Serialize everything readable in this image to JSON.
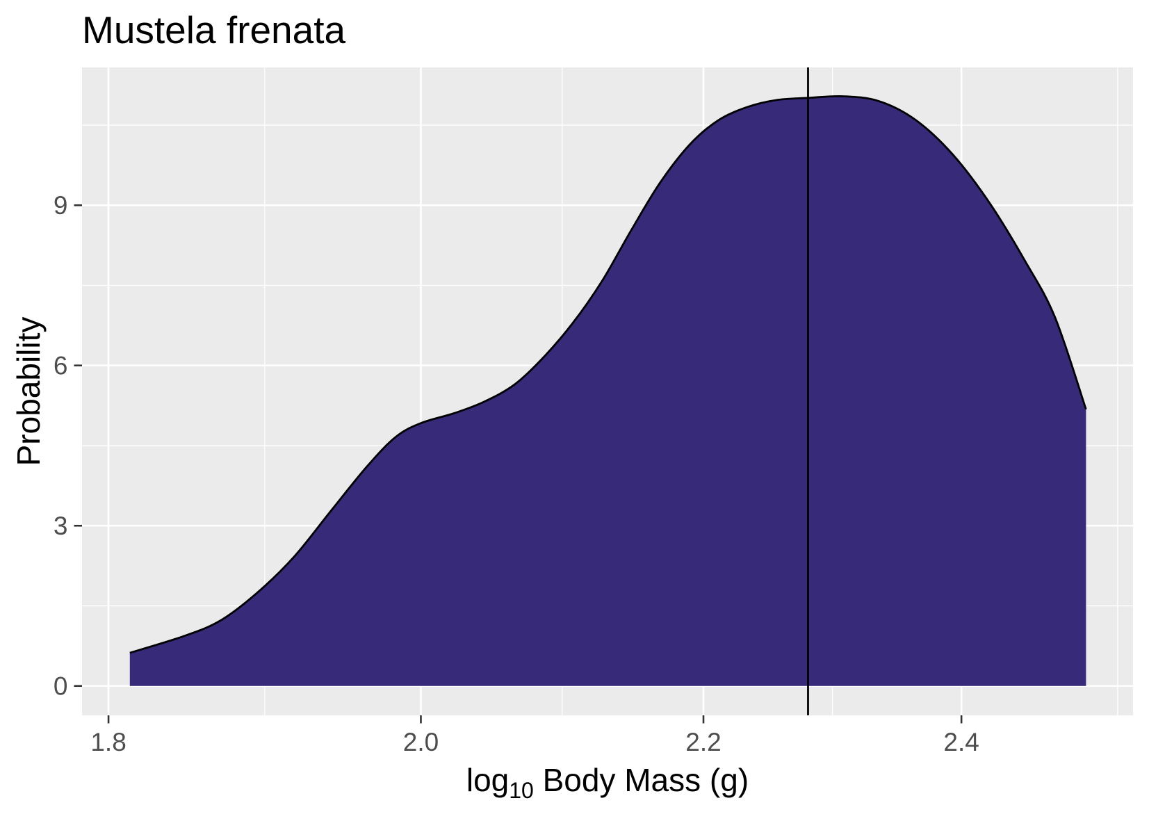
{
  "chart_data": {
    "type": "area",
    "title": "Mustela frenata",
    "xlabel": {
      "text": "log",
      "subscript": "10",
      "suffix": " Body Mass (g)"
    },
    "ylabel": "Probability",
    "x_scale": "log",
    "xlim": [
      1.784,
      2.543
    ],
    "ylim": [
      -0.55,
      11.58
    ],
    "x_ticks": [
      "1.8",
      "2.0",
      "2.2",
      "2.4"
    ],
    "y_ticks": [
      "0",
      "3",
      "6",
      "9"
    ],
    "grid": true,
    "x": [
      1.813,
      1.846,
      1.869,
      1.892,
      1.916,
      1.94,
      1.964,
      1.983,
      2.0,
      2.023,
      2.043,
      2.064,
      2.084,
      2.105,
      2.126,
      2.147,
      2.168,
      2.19,
      2.211,
      2.233,
      2.255,
      2.279,
      2.306,
      2.334,
      2.363,
      2.393,
      2.423,
      2.452,
      2.477,
      2.503
    ],
    "y": [
      0.62,
      0.93,
      1.22,
      1.73,
      2.41,
      3.27,
      4.11,
      4.66,
      4.92,
      5.11,
      5.32,
      5.64,
      6.14,
      6.79,
      7.58,
      8.53,
      9.42,
      10.14,
      10.59,
      10.84,
      10.97,
      11.01,
      11.04,
      10.95,
      10.6,
      9.95,
      9.04,
      7.96,
      6.9,
      5.18
    ],
    "vline_x": 2.279,
    "colors": {
      "fill": "#372A78",
      "line": "#000000",
      "vline": "#000000",
      "panel": "#EBEBEB",
      "grid": "#FFFFFF",
      "tick_mark": "#333333",
      "tick_label": "#4D4D4D"
    }
  }
}
